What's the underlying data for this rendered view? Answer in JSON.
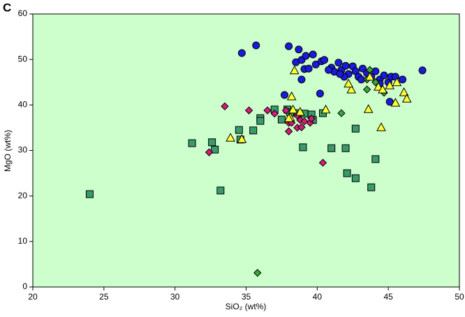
{
  "chart_data": {
    "type": "scatter",
    "panel_label": "C",
    "x_label": "SiO₂ (wt%)",
    "y_label": "MgO (wt%)",
    "xlim": [
      20,
      50
    ],
    "ylim": [
      0,
      60
    ],
    "xticks": [
      20,
      25,
      30,
      35,
      40,
      45,
      50
    ],
    "yticks": [
      0,
      10,
      20,
      30,
      40,
      50,
      60
    ],
    "background": "#ccffcc",
    "series": [
      {
        "color": "#1a1adc",
        "marker": "circle",
        "x": [
          34.7,
          35.7,
          38.0,
          38.7,
          38.5,
          38.9,
          39.2,
          39.7,
          39.1,
          39.4,
          38.9,
          39.9,
          40.3,
          40.5,
          37.7,
          40.2,
          41.0,
          41.5,
          41.2,
          41.7,
          42.0,
          42.2,
          42.5,
          42.7,
          42.9,
          43.2,
          43.5,
          43.8,
          44.1,
          44.4,
          44.7,
          45.0,
          45.2,
          45.5,
          46.0,
          47.4,
          45.1,
          41.9,
          41.6,
          43.1,
          44.4,
          40.8
        ],
        "values": [
          51.4,
          53.1,
          52.9,
          52.2,
          49.4,
          49.9,
          50.8,
          51.1,
          47.9,
          48.0,
          45.6,
          48.9,
          49.6,
          49.9,
          42.2,
          42.5,
          48.2,
          49.3,
          47.3,
          47.7,
          48.6,
          46.8,
          48.5,
          47.4,
          46.2,
          48.0,
          47.0,
          46.2,
          47.4,
          45.6,
          46.5,
          45.0,
          46.2,
          46.2,
          45.6,
          47.6,
          40.7,
          46.2,
          46.8,
          45.6,
          44.7,
          47.7
        ]
      },
      {
        "color": "#3a9a6a",
        "marker": "square",
        "x": [
          24.0,
          31.2,
          32.6,
          32.8,
          33.2,
          34.5,
          34.6,
          35.5,
          36.0,
          36.0,
          37.0,
          37.5,
          37.9,
          38.1,
          38.6,
          39.1,
          39.6,
          39.0,
          40.4,
          41.0,
          42.0,
          42.7,
          42.1,
          42.7,
          43.8,
          44.1,
          39.7
        ],
        "values": [
          20.4,
          31.6,
          31.8,
          30.2,
          21.2,
          34.5,
          32.4,
          34.4,
          37.1,
          36.5,
          39.0,
          36.8,
          39.0,
          38.4,
          38.2,
          38.1,
          37.9,
          30.7,
          38.2,
          30.5,
          30.5,
          34.8,
          25.0,
          23.9,
          21.9,
          28.1,
          36.7
        ]
      },
      {
        "color": "#d81b78",
        "marker": "diamond",
        "x": [
          33.5,
          35.2,
          36.5,
          37.0,
          37.8,
          38.6,
          38.0,
          38.2,
          38.8,
          39.1,
          39.5,
          39.6,
          38.6,
          38.9,
          38.0,
          32.4,
          40.4
        ],
        "values": [
          39.7,
          38.8,
          38.8,
          38.1,
          38.8,
          37.7,
          36.1,
          36.1,
          36.7,
          36.4,
          36.1,
          37.0,
          35.0,
          35.1,
          34.2,
          29.6,
          27.3
        ]
      },
      {
        "color": "#3aa53a",
        "marker": "diamond",
        "x": [
          35.8,
          41.7,
          43.5,
          43.7,
          44.1,
          44.7,
          43.5
        ],
        "values": [
          3.1,
          38.2,
          43.4,
          47.7,
          45.0,
          42.7,
          45.6
        ]
      },
      {
        "color": "#ffff33",
        "marker": "triangle",
        "x": [
          38.4,
          38.2,
          42.4,
          43.7,
          44.3,
          44.6,
          45.1,
          45.6,
          46.1,
          46.3,
          45.5,
          43.6,
          44.5,
          40.6,
          38.3,
          38.8,
          38.1,
          33.9,
          34.7,
          38.0,
          42.2
        ],
        "values": [
          47.6,
          41.9,
          43.4,
          46.2,
          44.0,
          43.4,
          44.3,
          45.0,
          42.8,
          41.4,
          40.5,
          39.1,
          35.1,
          39.0,
          39.0,
          38.5,
          37.3,
          32.8,
          32.5,
          37.1,
          44.7
        ]
      }
    ]
  }
}
